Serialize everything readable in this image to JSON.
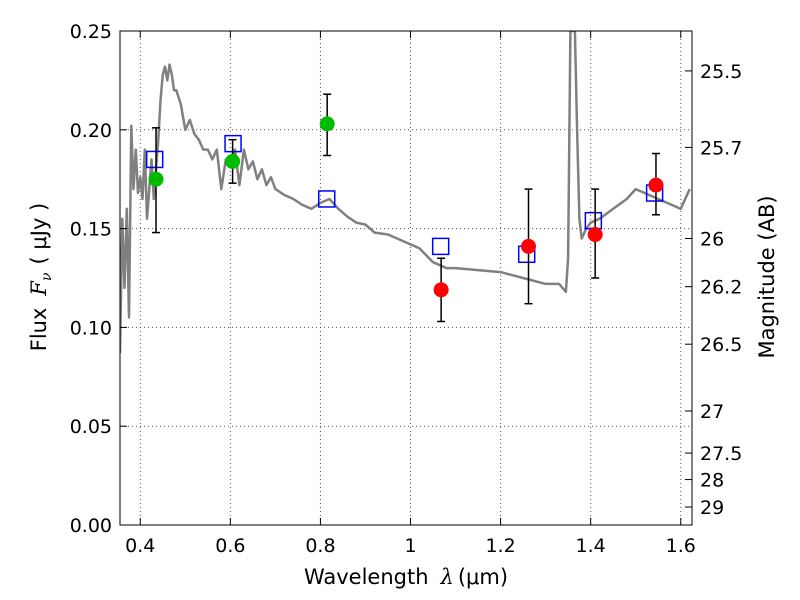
{
  "chart_data": {
    "type": "scatter",
    "xlabel": "Wavelength",
    "xlabel_symbol": "λ",
    "xlabel_unit": "(μm)",
    "ylabel": "Flux",
    "ylabel_symbol": "F",
    "ylabel_subscript": "ν",
    "ylabel_unit": "( μJy )",
    "y2label": "Magnitude (AB)",
    "xlim": [
      0.355,
      1.625
    ],
    "ylim": [
      0.0,
      0.25
    ],
    "grid": true,
    "x_ticks": [
      0.4,
      0.6,
      0.8,
      1.0,
      1.2,
      1.4,
      1.6
    ],
    "x_tick_labels": [
      "0.4",
      "0.6",
      "0.8",
      "1",
      "1.2",
      "1.4",
      "1.6"
    ],
    "y_ticks": [
      0.0,
      0.05,
      0.1,
      0.15,
      0.2,
      0.25
    ],
    "y_tick_labels": [
      "0.00",
      "0.05",
      "0.10",
      "0.15",
      "0.20",
      "0.25"
    ],
    "y2_ticks": [
      {
        "label": "25.5",
        "flux": 0.2298
      },
      {
        "label": "25.7",
        "flux": 0.1911
      },
      {
        "label": "26",
        "flux": 0.145
      },
      {
        "label": "26.2",
        "flux": 0.1206
      },
      {
        "label": "26.5",
        "flux": 0.0915
      },
      {
        "label": "27",
        "flux": 0.0577
      },
      {
        "label": "27.5",
        "flux": 0.0364
      },
      {
        "label": "28",
        "flux": 0.023
      },
      {
        "label": "29",
        "flux": 0.0091
      }
    ],
    "colors": {
      "model": "#808080",
      "green": "#00bb00",
      "red": "#ff0000",
      "box": "#0000ff",
      "error": "#000000",
      "grid": "#555555"
    },
    "model_spectrum": {
      "x": [
        0.355,
        0.36,
        0.365,
        0.37,
        0.375,
        0.38,
        0.385,
        0.39,
        0.395,
        0.4,
        0.405,
        0.41,
        0.415,
        0.42,
        0.425,
        0.43,
        0.435,
        0.44,
        0.445,
        0.45,
        0.455,
        0.46,
        0.465,
        0.47,
        0.475,
        0.48,
        0.49,
        0.5,
        0.51,
        0.52,
        0.53,
        0.54,
        0.55,
        0.56,
        0.57,
        0.58,
        0.59,
        0.6,
        0.61,
        0.62,
        0.63,
        0.64,
        0.65,
        0.66,
        0.67,
        0.68,
        0.69,
        0.7,
        0.72,
        0.74,
        0.76,
        0.78,
        0.8,
        0.82,
        0.84,
        0.86,
        0.88,
        0.9,
        0.92,
        0.95,
        1.0,
        1.02,
        1.05,
        1.08,
        1.1,
        1.15,
        1.2,
        1.25,
        1.3,
        1.33,
        1.345,
        1.35,
        1.355,
        1.36,
        1.365,
        1.37,
        1.375,
        1.38,
        1.39,
        1.4,
        1.42,
        1.45,
        1.48,
        1.5,
        1.52,
        1.55,
        1.58,
        1.6,
        1.62
      ],
      "y": [
        0.087,
        0.155,
        0.12,
        0.16,
        0.105,
        0.202,
        0.17,
        0.19,
        0.168,
        0.176,
        0.165,
        0.19,
        0.155,
        0.17,
        0.185,
        0.165,
        0.18,
        0.195,
        0.215,
        0.228,
        0.232,
        0.225,
        0.233,
        0.228,
        0.22,
        0.22,
        0.213,
        0.2,
        0.205,
        0.198,
        0.195,
        0.19,
        0.19,
        0.185,
        0.19,
        0.17,
        0.185,
        0.185,
        0.19,
        0.172,
        0.19,
        0.18,
        0.184,
        0.175,
        0.18,
        0.172,
        0.176,
        0.17,
        0.167,
        0.165,
        0.162,
        0.16,
        0.163,
        0.165,
        0.16,
        0.156,
        0.153,
        0.152,
        0.148,
        0.147,
        0.142,
        0.14,
        0.133,
        0.13,
        0.13,
        0.129,
        0.128,
        0.125,
        0.122,
        0.122,
        0.118,
        0.135,
        0.25,
        0.25,
        0.25,
        0.2,
        0.155,
        0.145,
        0.15,
        0.153,
        0.155,
        0.16,
        0.165,
        0.17,
        0.168,
        0.165,
        0.162,
        0.16,
        0.17
      ]
    },
    "photometry_green": [
      {
        "x": 0.435,
        "y": 0.175,
        "yerr_low": 0.148,
        "yerr_high": 0.201
      },
      {
        "x": 0.605,
        "y": 0.184,
        "yerr_low": 0.173,
        "yerr_high": 0.195
      },
      {
        "x": 0.815,
        "y": 0.203,
        "yerr_low": 0.187,
        "yerr_high": 0.218
      }
    ],
    "photometry_red": [
      {
        "x": 1.068,
        "y": 0.119,
        "yerr_low": 0.103,
        "yerr_high": 0.135
      },
      {
        "x": 1.262,
        "y": 0.141,
        "yerr_low": 0.112,
        "yerr_high": 0.17
      },
      {
        "x": 1.41,
        "y": 0.147,
        "yerr_low": 0.125,
        "yerr_high": 0.17
      },
      {
        "x": 1.545,
        "y": 0.172,
        "yerr_low": 0.157,
        "yerr_high": 0.188
      }
    ],
    "model_boxes": [
      {
        "x": 0.432,
        "y": 0.185
      },
      {
        "x": 0.606,
        "y": 0.193
      },
      {
        "x": 0.814,
        "y": 0.165
      },
      {
        "x": 1.067,
        "y": 0.141
      },
      {
        "x": 1.258,
        "y": 0.137
      },
      {
        "x": 1.406,
        "y": 0.154
      },
      {
        "x": 1.542,
        "y": 0.168
      }
    ]
  }
}
